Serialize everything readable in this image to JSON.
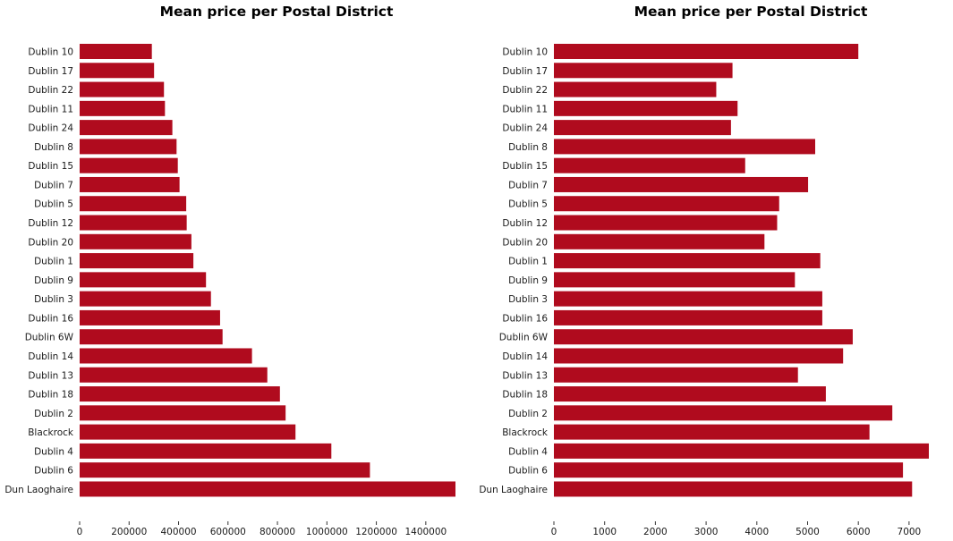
{
  "chart_data": [
    {
      "type": "bar",
      "orientation": "horizontal",
      "title": "Mean price per Postal District",
      "xlabel": "",
      "ylabel": "",
      "categories": [
        "Dublin 10",
        "Dublin 17",
        "Dublin 22",
        "Dublin 11",
        "Dublin 24",
        "Dublin 8",
        "Dublin 15",
        "Dublin 7",
        "Dublin 5",
        "Dublin 12",
        "Dublin 20",
        "Dublin 1",
        "Dublin 9",
        "Dublin 3",
        "Dublin 16",
        "Dublin 6W",
        "Dublin 14",
        "Dublin 13",
        "Dublin 18",
        "Dublin 2",
        "Blackrock",
        "Dublin 4",
        "Dublin 6",
        "Dun Laoghaire"
      ],
      "values": [
        292000,
        301000,
        341000,
        345000,
        375000,
        392000,
        397000,
        404000,
        431000,
        433000,
        452000,
        460000,
        511000,
        531000,
        568000,
        578000,
        697000,
        759000,
        810000,
        833000,
        873000,
        1018000,
        1174000,
        1520000
      ],
      "xticks": [
        "0",
        "200000",
        "400000",
        "600000",
        "800000",
        "1000000",
        "1200000",
        "1400000"
      ],
      "xlim": [
        0,
        1520000
      ],
      "color": "#b00b1e",
      "grid": false
    },
    {
      "type": "bar",
      "orientation": "horizontal",
      "title": "Mean price per Postal District",
      "xlabel": "",
      "ylabel": "",
      "categories": [
        "Dublin 10",
        "Dublin 17",
        "Dublin 22",
        "Dublin 11",
        "Dublin 24",
        "Dublin 8",
        "Dublin 15",
        "Dublin 7",
        "Dublin 5",
        "Dublin 12",
        "Dublin 20",
        "Dublin 1",
        "Dublin 9",
        "Dublin 3",
        "Dublin 16",
        "Dublin 6W",
        "Dublin 14",
        "Dublin 13",
        "Dublin 18",
        "Dublin 2",
        "Blackrock",
        "Dublin 4",
        "Dublin 6",
        "Dun Laoghaire"
      ],
      "values": [
        6000,
        3520,
        3200,
        3620,
        3490,
        5150,
        3770,
        5010,
        4440,
        4400,
        4150,
        5250,
        4750,
        5290,
        5290,
        5890,
        5700,
        4810,
        5360,
        6670,
        6220,
        7390,
        6880,
        7060
      ],
      "xticks": [
        "0",
        "1000",
        "2000",
        "3000",
        "4000",
        "5000",
        "6000",
        "7000"
      ],
      "xlim": [
        0,
        7390
      ],
      "color": "#b00b1e",
      "grid": false
    }
  ]
}
